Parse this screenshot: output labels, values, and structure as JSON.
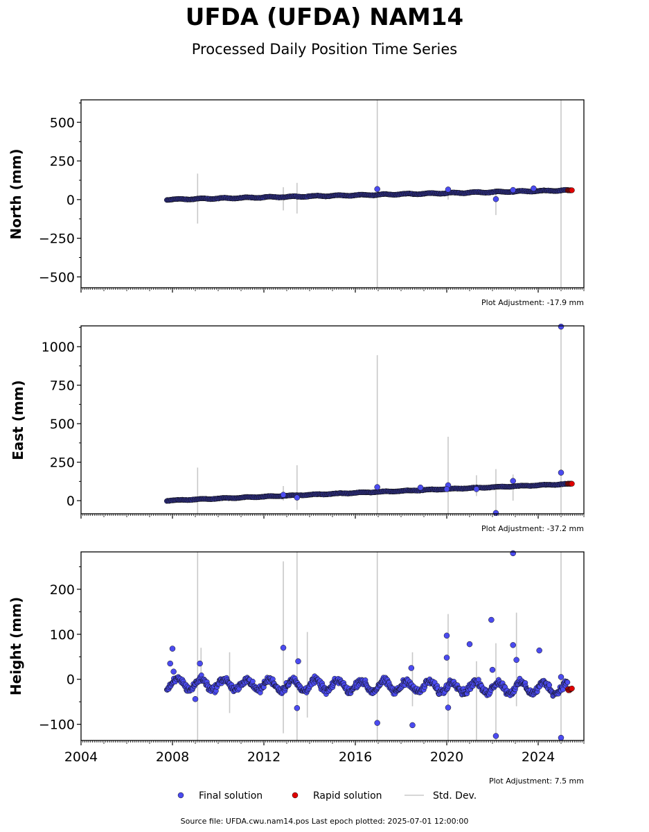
{
  "figure": {
    "title": "UFDA (UFDA) NAM14",
    "subtitle": "Processed Daily Position Time Series",
    "footer": "Source file: UFDA.cwu.nam14.pos  Last epoch plotted: 2025-07-01 12:00:00"
  },
  "legend": {
    "final_label": "Final solution",
    "rapid_label": "Rapid solution",
    "stddev_label": "Std. Dev."
  },
  "colors": {
    "final": "#4b4bf0",
    "rapid": "#e00000",
    "stddev": "#c8c8c8",
    "edge": "#101010"
  },
  "chart_data": [
    {
      "type": "scatter",
      "panel": "north",
      "ylabel": "North (mm)",
      "adjustment_label": "Plot Adjustment: -17.9 mm",
      "xlim": [
        2004.0,
        2026.0
      ],
      "ylim": [
        -570,
        645
      ],
      "yticks": [
        500,
        250,
        0,
        -250,
        -500
      ],
      "ytick_labels": [
        "500",
        "250",
        "0",
        "−250",
        "−500"
      ],
      "final_trend": {
        "x_start": 2007.75,
        "y_start": 0,
        "x_end": 2025.3,
        "y_end": 60,
        "seasonal_amp": 3
      },
      "rapid_points": {
        "x_start": 2025.3,
        "x_end": 2025.5,
        "y": 60
      },
      "outliers": [
        {
          "x": 2016.96,
          "y": 68
        },
        {
          "x": 2020.06,
          "y": 65
        },
        {
          "x": 2022.15,
          "y": 3
        },
        {
          "x": 2022.9,
          "y": 62
        },
        {
          "x": 2023.8,
          "y": 72
        }
      ],
      "stddev_spikes": [
        {
          "x": 2009.1,
          "low": -155,
          "high": 168
        },
        {
          "x": 2012.85,
          "low": -70,
          "high": 80
        },
        {
          "x": 2013.45,
          "low": -90,
          "high": 108
        },
        {
          "x": 2016.96,
          "low": -570,
          "high": 645
        },
        {
          "x": 2020.06,
          "low": 0,
          "high": 82
        },
        {
          "x": 2022.15,
          "low": -100,
          "high": 60
        },
        {
          "x": 2022.9,
          "low": 30,
          "high": 72
        },
        {
          "x": 2025.0,
          "low": -570,
          "high": 645
        }
      ]
    },
    {
      "type": "scatter",
      "panel": "east",
      "ylabel": "East (mm)",
      "adjustment_label": "Plot Adjustment: -37.2 mm",
      "xlim": [
        2004.0,
        2026.0
      ],
      "ylim": [
        -85,
        1135
      ],
      "yticks": [
        1000,
        750,
        500,
        250,
        0
      ],
      "ytick_labels": [
        "1000",
        "750",
        "500",
        "250",
        "0"
      ],
      "final_trend": {
        "x_start": 2007.75,
        "y_start": 0,
        "x_end": 2025.3,
        "y_end": 108,
        "seasonal_amp": 2
      },
      "rapid_points": {
        "x_start": 2025.3,
        "x_end": 2025.5,
        "y": 110
      },
      "outliers": [
        {
          "x": 2012.85,
          "y": 38
        },
        {
          "x": 2013.45,
          "y": 20
        },
        {
          "x": 2016.96,
          "y": 88
        },
        {
          "x": 2018.85,
          "y": 85
        },
        {
          "x": 2020.06,
          "y": 100
        },
        {
          "x": 2020.0,
          "y": 75
        },
        {
          "x": 2021.3,
          "y": 75
        },
        {
          "x": 2022.15,
          "y": -80
        },
        {
          "x": 2022.9,
          "y": 128
        },
        {
          "x": 2025.0,
          "y": 182
        },
        {
          "x": 2025.0,
          "y": 1130
        }
      ],
      "stddev_spikes": [
        {
          "x": 2009.1,
          "low": -85,
          "high": 215
        },
        {
          "x": 2012.85,
          "low": 0,
          "high": 95
        },
        {
          "x": 2013.45,
          "low": -60,
          "high": 230
        },
        {
          "x": 2016.96,
          "low": -85,
          "high": 945
        },
        {
          "x": 2020.06,
          "low": -85,
          "high": 415
        },
        {
          "x": 2021.3,
          "low": 30,
          "high": 165
        },
        {
          "x": 2022.15,
          "low": -85,
          "high": 205
        },
        {
          "x": 2022.9,
          "low": 0,
          "high": 170
        },
        {
          "x": 2025.0,
          "low": -85,
          "high": 1135
        }
      ]
    },
    {
      "type": "scatter",
      "panel": "height",
      "ylabel": "Height (mm)",
      "adjustment_label": "Plot Adjustment: 7.5 mm",
      "xlim": [
        2004.0,
        2026.0
      ],
      "ylim": [
        -136,
        283
      ],
      "yticks": [
        200,
        100,
        0,
        -100
      ],
      "ytick_labels": [
        "200",
        "100",
        "0",
        "−100"
      ],
      "xticks": [
        2004,
        2008,
        2012,
        2016,
        2020,
        2024
      ],
      "xtick_labels": [
        "2004",
        "2008",
        "2012",
        "2016",
        "2020",
        "2024"
      ],
      "final_trend": {
        "x_start": 2007.75,
        "y_start": -10,
        "x_end": 2025.3,
        "y_end": -20,
        "seasonal_amp": 12
      },
      "rapid_points": {
        "x_start": 2025.3,
        "x_end": 2025.5,
        "y": -22
      },
      "outliers": [
        {
          "x": 2007.9,
          "y": 35
        },
        {
          "x": 2008.0,
          "y": 68
        },
        {
          "x": 2008.05,
          "y": 17
        },
        {
          "x": 2009.0,
          "y": -44
        },
        {
          "x": 2009.2,
          "y": 35
        },
        {
          "x": 2012.85,
          "y": 70
        },
        {
          "x": 2013.45,
          "y": -64
        },
        {
          "x": 2013.5,
          "y": 40
        },
        {
          "x": 2016.96,
          "y": -97
        },
        {
          "x": 2018.5,
          "y": -102
        },
        {
          "x": 2018.45,
          "y": 25
        },
        {
          "x": 2020.0,
          "y": 97
        },
        {
          "x": 2020.0,
          "y": 48
        },
        {
          "x": 2020.06,
          "y": -63
        },
        {
          "x": 2021.0,
          "y": 78
        },
        {
          "x": 2021.95,
          "y": 132
        },
        {
          "x": 2022.0,
          "y": 21
        },
        {
          "x": 2022.15,
          "y": -126
        },
        {
          "x": 2022.9,
          "y": 280
        },
        {
          "x": 2022.9,
          "y": 76
        },
        {
          "x": 2023.05,
          "y": 43
        },
        {
          "x": 2024.05,
          "y": 64
        },
        {
          "x": 2025.0,
          "y": 5
        },
        {
          "x": 2025.0,
          "y": -130
        }
      ],
      "stddev_spikes": [
        {
          "x": 2009.1,
          "low": -136,
          "high": 283
        },
        {
          "x": 2009.25,
          "low": -10,
          "high": 70
        },
        {
          "x": 2010.5,
          "low": -75,
          "high": 60
        },
        {
          "x": 2012.85,
          "low": -120,
          "high": 262
        },
        {
          "x": 2013.45,
          "low": -136,
          "high": 283
        },
        {
          "x": 2013.9,
          "low": -85,
          "high": 105
        },
        {
          "x": 2016.96,
          "low": -136,
          "high": 283
        },
        {
          "x": 2018.5,
          "low": -60,
          "high": 60
        },
        {
          "x": 2020.06,
          "low": -136,
          "high": 145
        },
        {
          "x": 2021.3,
          "low": -136,
          "high": 40
        },
        {
          "x": 2022.15,
          "low": -136,
          "high": 80
        },
        {
          "x": 2023.05,
          "low": -60,
          "high": 148
        },
        {
          "x": 2025.0,
          "low": -136,
          "high": 283
        }
      ]
    }
  ]
}
